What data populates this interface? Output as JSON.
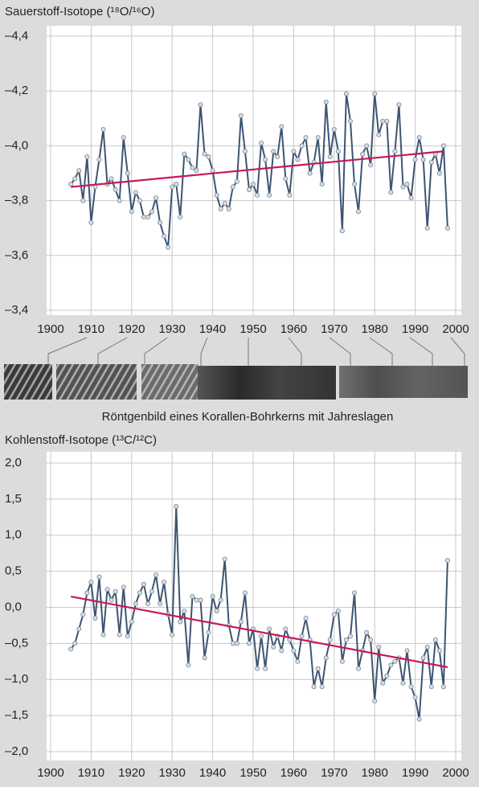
{
  "chart_data": [
    {
      "type": "line",
      "title": "Sauerstoff-Isotope (¹⁸O/¹⁶O)",
      "x": [
        1905,
        1906,
        1907,
        1908,
        1909,
        1910,
        1911,
        1912,
        1913,
        1914,
        1915,
        1916,
        1917,
        1918,
        1919,
        1920,
        1921,
        1922,
        1923,
        1924,
        1925,
        1926,
        1927,
        1928,
        1929,
        1930,
        1931,
        1932,
        1933,
        1934,
        1935,
        1936,
        1937,
        1938,
        1939,
        1940,
        1941,
        1942,
        1943,
        1944,
        1945,
        1946,
        1947,
        1948,
        1949,
        1950,
        1951,
        1952,
        1953,
        1954,
        1955,
        1956,
        1957,
        1958,
        1959,
        1960,
        1961,
        1962,
        1963,
        1964,
        1965,
        1966,
        1967,
        1968,
        1969,
        1970,
        1971,
        1972,
        1973,
        1974,
        1975,
        1976,
        1977,
        1978,
        1979,
        1980,
        1981,
        1982,
        1983,
        1984,
        1985,
        1986,
        1987,
        1988,
        1989,
        1990,
        1991,
        1992,
        1993,
        1994,
        1995,
        1996,
        1997,
        1998
      ],
      "xlim": [
        1900,
        2000
      ],
      "xticks": [
        1900,
        1910,
        1920,
        1930,
        1940,
        1950,
        1960,
        1970,
        1980,
        1990,
        2000
      ],
      "ylim": [
        -3.4,
        -4.4
      ],
      "yticks": [
        {
          "value": -4.4,
          "label": "–4,4"
        },
        {
          "value": -4.2,
          "label": "–4,2"
        },
        {
          "value": -4.0,
          "label": "–4,0"
        },
        {
          "value": -3.8,
          "label": "–3,8"
        },
        {
          "value": -3.6,
          "label": "–3,6"
        },
        {
          "value": -3.4,
          "label": "–3,4"
        }
      ],
      "grid": true,
      "series": [
        {
          "color": "#3c5572",
          "marker": true,
          "values": [
            -3.86,
            -3.88,
            -3.91,
            -3.8,
            -3.96,
            -3.72,
            -3.85,
            -3.95,
            -4.06,
            -3.86,
            -3.88,
            -3.84,
            -3.8,
            -4.03,
            -3.9,
            -3.76,
            -3.83,
            -3.8,
            -3.74,
            -3.74,
            -3.76,
            -3.81,
            -3.72,
            -3.67,
            -3.63,
            -3.85,
            -3.86,
            -3.74,
            -3.97,
            -3.95,
            -3.92,
            -3.91,
            -4.15,
            -3.97,
            -3.96,
            -3.91,
            -3.82,
            -3.77,
            -3.79,
            -3.77,
            -3.85,
            -3.87,
            -4.11,
            -3.98,
            -3.84,
            -3.86,
            -3.82,
            -4.01,
            -3.95,
            -3.82,
            -3.98,
            -3.96,
            -4.07,
            -3.88,
            -3.82,
            -3.98,
            -3.95,
            -4.0,
            -4.03,
            -3.9,
            -3.94,
            -4.03,
            -3.86,
            -4.16,
            -3.96,
            -4.06,
            -3.98,
            -3.69,
            -4.19,
            -4.09,
            -3.86,
            -3.76,
            -3.97,
            -4.0,
            -3.93,
            -4.19,
            -4.04,
            -4.09,
            -4.09,
            -3.83,
            -3.98,
            -4.15,
            -3.85,
            -3.86,
            -3.81,
            -3.95,
            -4.03,
            -3.95,
            -3.7,
            -3.94,
            -3.97,
            -3.9,
            -4.0,
            -3.7
          ]
        },
        {
          "color": "#c8185a",
          "marker": false,
          "x": [
            1905,
            1997
          ],
          "values": [
            -3.85,
            -3.98
          ]
        }
      ]
    },
    {
      "type": "line",
      "title": "Kohlenstoff-Isotope (¹³C/¹²C)",
      "x": [
        1905,
        1906,
        1907,
        1908,
        1909,
        1910,
        1911,
        1912,
        1913,
        1914,
        1915,
        1916,
        1917,
        1918,
        1919,
        1920,
        1921,
        1922,
        1923,
        1924,
        1925,
        1926,
        1927,
        1928,
        1929,
        1930,
        1931,
        1932,
        1933,
        1934,
        1935,
        1936,
        1937,
        1938,
        1939,
        1940,
        1941,
        1942,
        1943,
        1944,
        1945,
        1946,
        1947,
        1948,
        1949,
        1950,
        1951,
        1952,
        1953,
        1954,
        1955,
        1956,
        1957,
        1958,
        1959,
        1960,
        1961,
        1962,
        1963,
        1964,
        1965,
        1966,
        1967,
        1968,
        1969,
        1970,
        1971,
        1972,
        1973,
        1974,
        1975,
        1976,
        1977,
        1978,
        1979,
        1980,
        1981,
        1982,
        1983,
        1984,
        1985,
        1986,
        1987,
        1988,
        1989,
        1990,
        1991,
        1992,
        1993,
        1994,
        1995,
        1996,
        1997,
        1998
      ],
      "xlim": [
        1900,
        2000
      ],
      "xticks": [
        1900,
        1910,
        1920,
        1930,
        1940,
        1950,
        1960,
        1970,
        1980,
        1990,
        2000
      ],
      "ylim": [
        -2.0,
        2.0
      ],
      "yticks": [
        {
          "value": 2.0,
          "label": "2,0"
        },
        {
          "value": 1.5,
          "label": "1,5"
        },
        {
          "value": 1.0,
          "label": "1,0"
        },
        {
          "value": 0.5,
          "label": "0,5"
        },
        {
          "value": 0.0,
          "label": "0,0"
        },
        {
          "value": -0.5,
          "label": "–0,5"
        },
        {
          "value": -1.0,
          "label": "–1,0"
        },
        {
          "value": -1.5,
          "label": "–1,5"
        },
        {
          "value": -2.0,
          "label": "–2,0"
        }
      ],
      "grid": true,
      "series": [
        {
          "color": "#3c5572",
          "marker": true,
          "values": [
            -0.58,
            -0.5,
            -0.3,
            -0.1,
            0.2,
            0.35,
            -0.15,
            0.42,
            -0.38,
            0.25,
            0.1,
            0.22,
            -0.38,
            0.28,
            -0.4,
            -0.2,
            0.05,
            0.2,
            0.32,
            0.05,
            0.22,
            0.45,
            0.05,
            0.35,
            -0.1,
            -0.38,
            1.4,
            -0.2,
            -0.05,
            -0.8,
            0.15,
            0.1,
            0.1,
            -0.7,
            -0.35,
            0.15,
            -0.05,
            0.1,
            0.67,
            -0.25,
            -0.5,
            -0.5,
            -0.2,
            0.2,
            -0.5,
            -0.3,
            -0.85,
            -0.4,
            -0.85,
            -0.3,
            -0.55,
            -0.4,
            -0.6,
            -0.3,
            -0.45,
            -0.6,
            -0.75,
            -0.4,
            -0.15,
            -0.45,
            -1.1,
            -0.85,
            -1.1,
            -0.7,
            -0.45,
            -0.1,
            -0.05,
            -0.75,
            -0.45,
            -0.4,
            0.2,
            -0.85,
            -0.6,
            -0.35,
            -0.45,
            -1.3,
            -0.55,
            -1.05,
            -0.95,
            -0.8,
            -0.75,
            -0.7,
            -1.05,
            -0.6,
            -1.1,
            -1.25,
            -1.55,
            -0.7,
            -0.55,
            -1.1,
            -0.45,
            -0.6,
            -1.1,
            0.65
          ]
        },
        {
          "color": "#c8185a",
          "marker": false,
          "x": [
            1905,
            1998
          ],
          "values": [
            0.15,
            -0.83
          ]
        }
      ]
    }
  ],
  "caption": "Röntgenbild eines Korallen-Bohrkerns mit Jahreslagen"
}
